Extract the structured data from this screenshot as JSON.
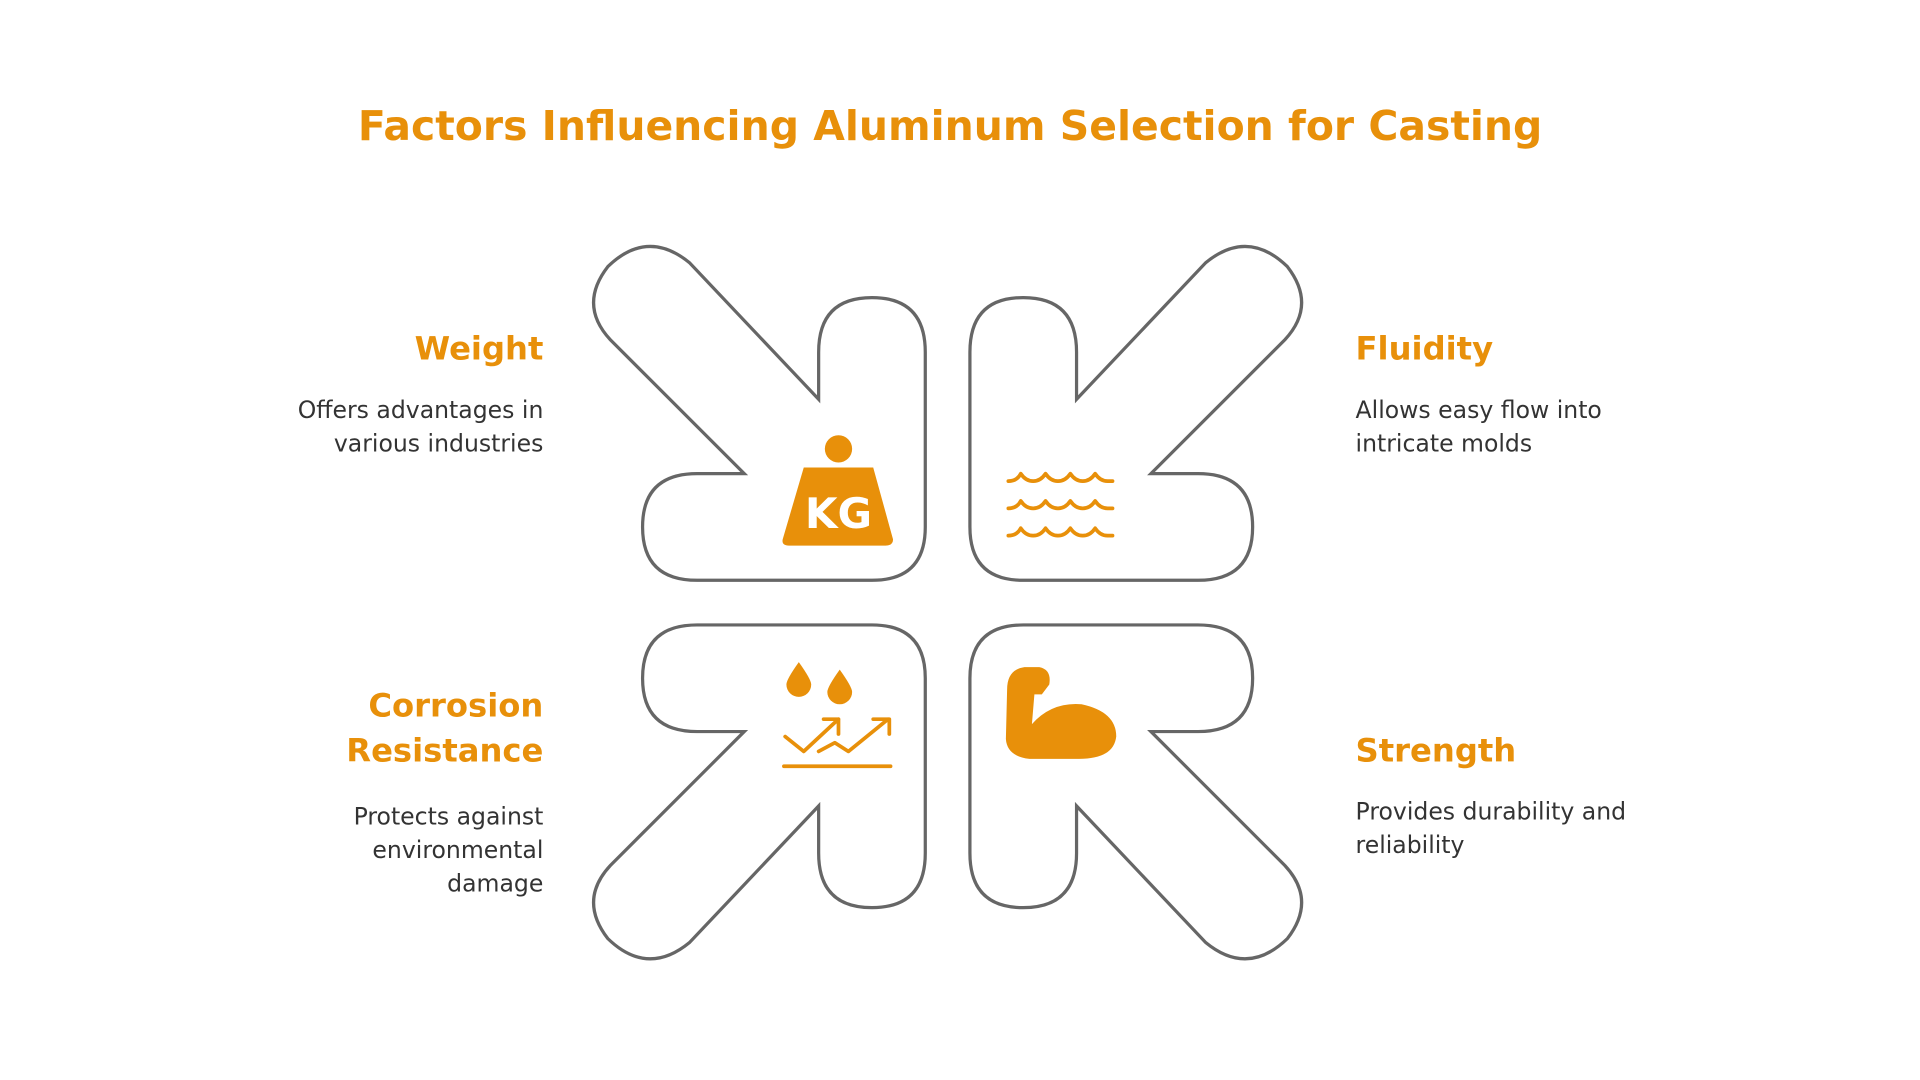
{
  "title": "Factors Influencing Aluminum Selection for Casting",
  "accent_color": "#E8900A",
  "outline_color": "#666666",
  "factors": [
    {
      "name": "Weight",
      "lines": [
        "Offers advantages in",
        "various industries"
      ],
      "icon": "kg-weight-icon",
      "icon_text": "KG"
    },
    {
      "name": "Fluidity",
      "lines": [
        "Allows easy flow into",
        "intricate molds"
      ],
      "icon": "water-waves-icon"
    },
    {
      "name_lines": [
        "Corrosion",
        "Resistance"
      ],
      "lines": [
        "Protects against",
        "environmental",
        "damage"
      ],
      "icon": "drops-trend-icon"
    },
    {
      "name": "Strength",
      "lines": [
        "Provides durability and",
        "reliability"
      ],
      "icon": "flexed-arm-icon"
    }
  ]
}
